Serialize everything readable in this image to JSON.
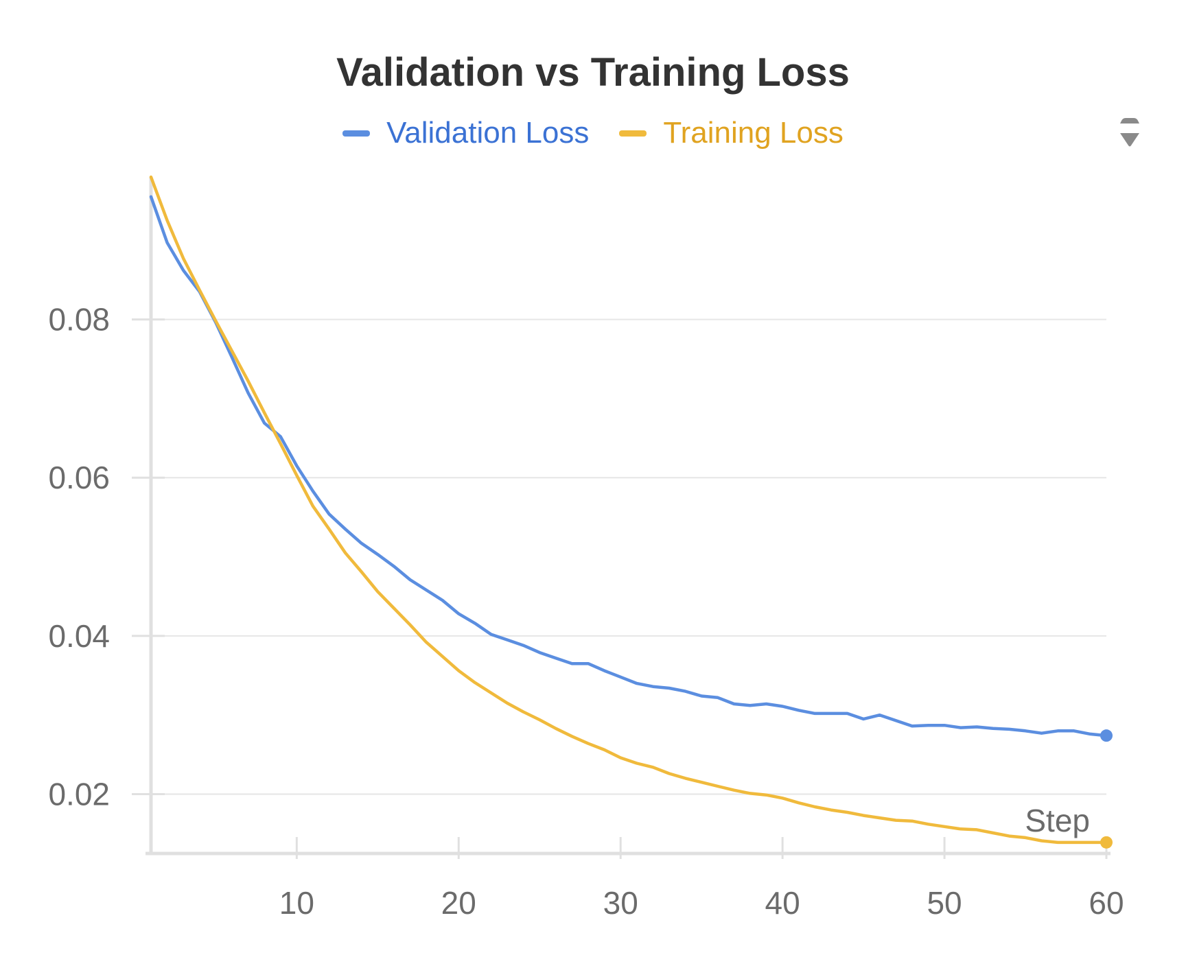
{
  "chart_data": {
    "type": "line",
    "title": "Validation vs Training Loss",
    "xlabel": "Step",
    "ylabel": "",
    "xlim": [
      1,
      60
    ],
    "ylim": [
      0.0125,
      0.098
    ],
    "x_ticks": [
      10,
      20,
      30,
      40,
      50,
      60
    ],
    "y_ticks": [
      0.02,
      0.04,
      0.06,
      0.08
    ],
    "y_tick_labels": [
      "0.02",
      "0.04",
      "0.06",
      "0.08"
    ],
    "grid": "horizontal",
    "legend_position": "top-center",
    "end_markers": true,
    "x": [
      1,
      2,
      3,
      4,
      5,
      6,
      7,
      8,
      9,
      10,
      11,
      12,
      13,
      14,
      15,
      16,
      17,
      18,
      19,
      20,
      21,
      22,
      23,
      24,
      25,
      26,
      27,
      28,
      29,
      30,
      31,
      32,
      33,
      34,
      35,
      36,
      37,
      38,
      39,
      40,
      41,
      42,
      43,
      44,
      45,
      46,
      47,
      48,
      49,
      50,
      51,
      52,
      53,
      54,
      55,
      56,
      57,
      58,
      59,
      60
    ],
    "series": [
      {
        "name": "Validation Loss",
        "color": "#5b8ee0",
        "values": [
          0.0955,
          0.0897,
          0.0862,
          0.0835,
          0.0796,
          0.0752,
          0.0707,
          0.0669,
          0.0652,
          0.0615,
          0.0583,
          0.0554,
          0.0535,
          0.0517,
          0.0503,
          0.0488,
          0.0471,
          0.0458,
          0.0445,
          0.0428,
          0.0416,
          0.0402,
          0.0395,
          0.0388,
          0.0379,
          0.0372,
          0.0365,
          0.0365,
          0.0356,
          0.0348,
          0.034,
          0.0336,
          0.0334,
          0.033,
          0.0324,
          0.0322,
          0.0314,
          0.0312,
          0.0314,
          0.0311,
          0.0306,
          0.0302,
          0.0302,
          0.0302,
          0.0295,
          0.03,
          0.0293,
          0.0286,
          0.0287,
          0.0287,
          0.0284,
          0.0285,
          0.0283,
          0.0282,
          0.028,
          0.0277,
          0.028,
          0.028,
          0.0276,
          0.0274
        ]
      },
      {
        "name": "Training Loss",
        "color": "#f0ba3c",
        "values": [
          0.098,
          0.0925,
          0.0877,
          0.0837,
          0.0798,
          0.076,
          0.0722,
          0.0682,
          0.0643,
          0.0603,
          0.0564,
          0.0535,
          0.0505,
          0.0481,
          0.0456,
          0.0435,
          0.0414,
          0.0392,
          0.0374,
          0.0356,
          0.0341,
          0.0328,
          0.0315,
          0.0304,
          0.0294,
          0.0283,
          0.0273,
          0.0264,
          0.0256,
          0.0246,
          0.0239,
          0.0234,
          0.0226,
          0.022,
          0.0215,
          0.021,
          0.0205,
          0.0201,
          0.0199,
          0.0195,
          0.0189,
          0.0184,
          0.018,
          0.0177,
          0.0173,
          0.017,
          0.0167,
          0.0166,
          0.0162,
          0.0159,
          0.0156,
          0.0155,
          0.0151,
          0.0147,
          0.0145,
          0.0141,
          0.0139,
          0.0139,
          0.0139,
          0.0139
        ]
      }
    ]
  },
  "legend": {
    "items": [
      {
        "label": "Validation Loss",
        "color": "#3b72d4",
        "swatch": "#5b8ee0"
      },
      {
        "label": "Training Loss",
        "color": "#e0a320",
        "swatch": "#f0ba3c"
      }
    ],
    "scroll_icon": "legend-scroll-arrows-icon"
  }
}
